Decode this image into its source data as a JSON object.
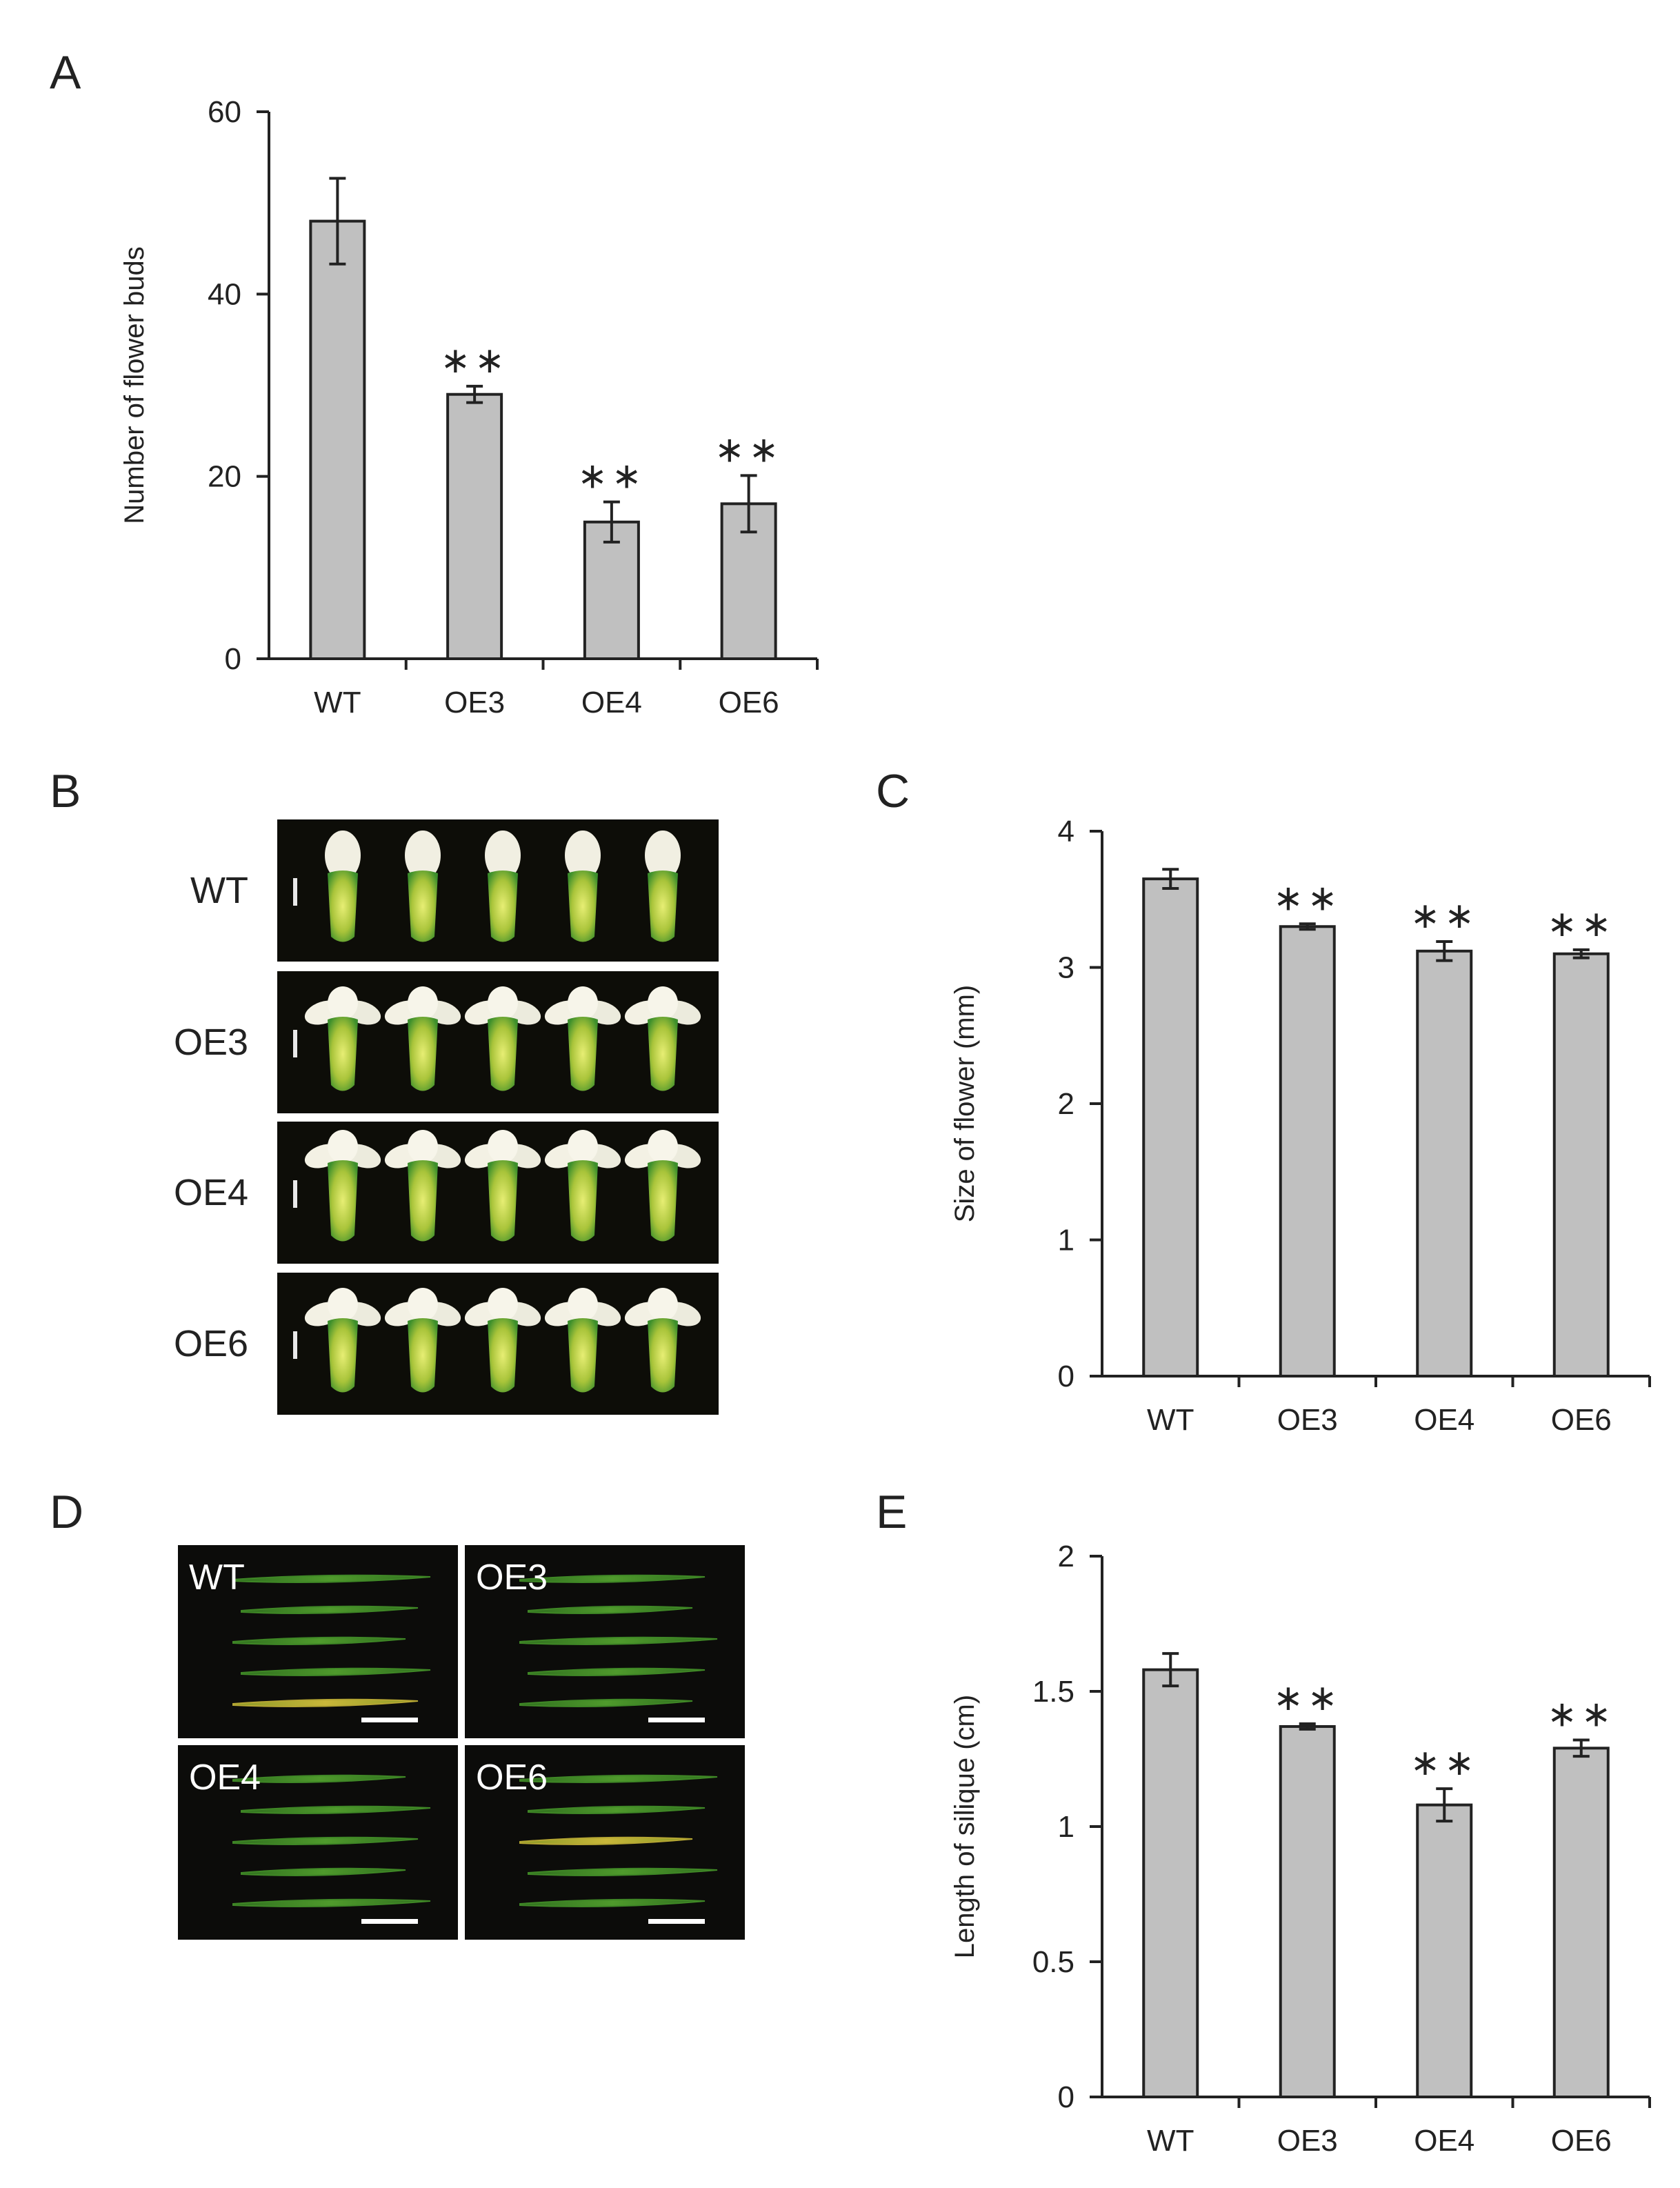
{
  "panels": [
    {
      "id": "A",
      "letter": "A"
    },
    {
      "id": "B",
      "letter": "B"
    },
    {
      "id": "C",
      "letter": "C"
    },
    {
      "id": "D",
      "letter": "D"
    },
    {
      "id": "E",
      "letter": "E"
    }
  ],
  "chart_data": [
    {
      "panel": "A",
      "type": "bar",
      "categories": [
        "WT",
        "OE3",
        "OE4",
        "OE6"
      ],
      "values": [
        48,
        29,
        15,
        17
      ],
      "errors": [
        4.7,
        0.9,
        2.2,
        3.1
      ],
      "significance": [
        "",
        "**",
        "**",
        "**"
      ],
      "xlabel": "",
      "ylabel": "Number of flower buds",
      "ylim": [
        0,
        60
      ],
      "yticks": [
        0,
        20,
        40,
        60
      ],
      "ytick_labels": [
        "0",
        "20",
        "40",
        "60"
      ],
      "bar_color": "#c0c0c0",
      "grid": false,
      "legend": "none"
    },
    {
      "panel": "C",
      "type": "bar",
      "categories": [
        "WT",
        "OE3",
        "OE4",
        "OE6"
      ],
      "values": [
        3.65,
        3.3,
        3.12,
        3.1
      ],
      "errors": [
        0.07,
        0.02,
        0.07,
        0.03
      ],
      "significance": [
        "",
        "**",
        "**",
        "**"
      ],
      "xlabel": "",
      "ylabel": "Size of flower (mm)",
      "ylim": [
        0,
        4
      ],
      "yticks": [
        0,
        1,
        2,
        3,
        4
      ],
      "ytick_labels": [
        "0",
        "1",
        "2",
        "3",
        "4"
      ],
      "bar_color": "#c0c0c0",
      "grid": false,
      "legend": "none"
    },
    {
      "panel": "E",
      "type": "bar",
      "categories": [
        "WT",
        "OE3",
        "OE4",
        "OE6"
      ],
      "values": [
        1.58,
        1.37,
        1.08,
        1.29
      ],
      "errors": [
        0.06,
        0.01,
        0.06,
        0.03
      ],
      "significance": [
        "",
        "**",
        "**",
        "**"
      ],
      "xlabel": "",
      "ylabel": "Length of silique (cm)",
      "ylim": [
        0,
        2
      ],
      "yticks": [
        0,
        0.5,
        1,
        1.5,
        2
      ],
      "ytick_labels": [
        "0",
        "0.5",
        "1",
        "1.5",
        "2"
      ],
      "bar_color": "#c0c0c0",
      "grid": false,
      "legend": "none"
    }
  ],
  "photo_B": {
    "rows": [
      "WT",
      "OE3",
      "OE4",
      "OE6"
    ],
    "flowers_per_row": 5
  },
  "photo_D": {
    "tiles": [
      "WT",
      "OE3",
      "OE4",
      "OE6"
    ],
    "siliques_per_tile": 5
  }
}
